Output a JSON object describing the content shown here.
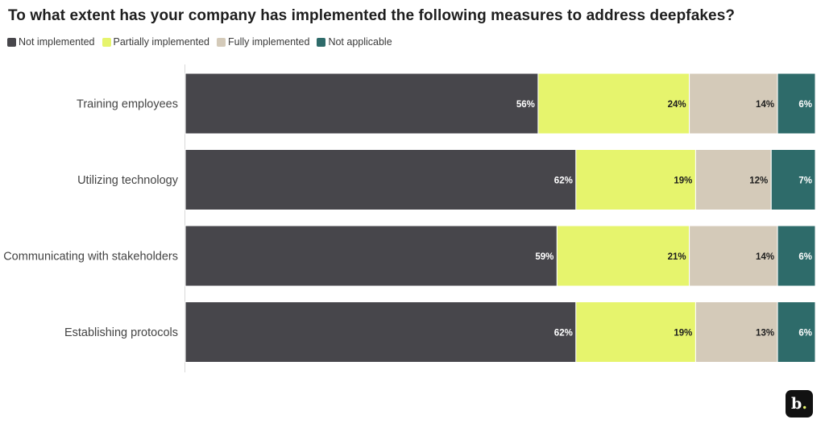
{
  "title": "To what extent has your company has implemented the following measures to address deepfakes?",
  "logo": {
    "letter": "b",
    "dot": ".",
    "name": "b-dot-logo"
  },
  "chart_data": {
    "type": "bar",
    "orientation": "horizontal",
    "stacked": true,
    "categories": [
      "Training employees",
      "Utilizing technology",
      "Communicating with stakeholders",
      "Establishing protocols"
    ],
    "series": [
      {
        "name": "Not implemented",
        "color": "#47464b",
        "label_color": "#ffffff",
        "values": [
          56,
          62,
          59,
          62
        ]
      },
      {
        "name": "Partially implemented",
        "color": "#e6f46d",
        "label_color": "#1e1e1e",
        "values": [
          24,
          19,
          21,
          19
        ]
      },
      {
        "name": "Fully implemented",
        "color": "#d4cab9",
        "label_color": "#1e1e1e",
        "values": [
          14,
          12,
          14,
          13
        ]
      },
      {
        "name": "Not applicable",
        "color": "#2e6b6a",
        "label_color": "#ffffff",
        "values": [
          6,
          7,
          6,
          6
        ]
      }
    ],
    "value_suffix": "%",
    "legend_position": "top-left",
    "grid": false
  }
}
